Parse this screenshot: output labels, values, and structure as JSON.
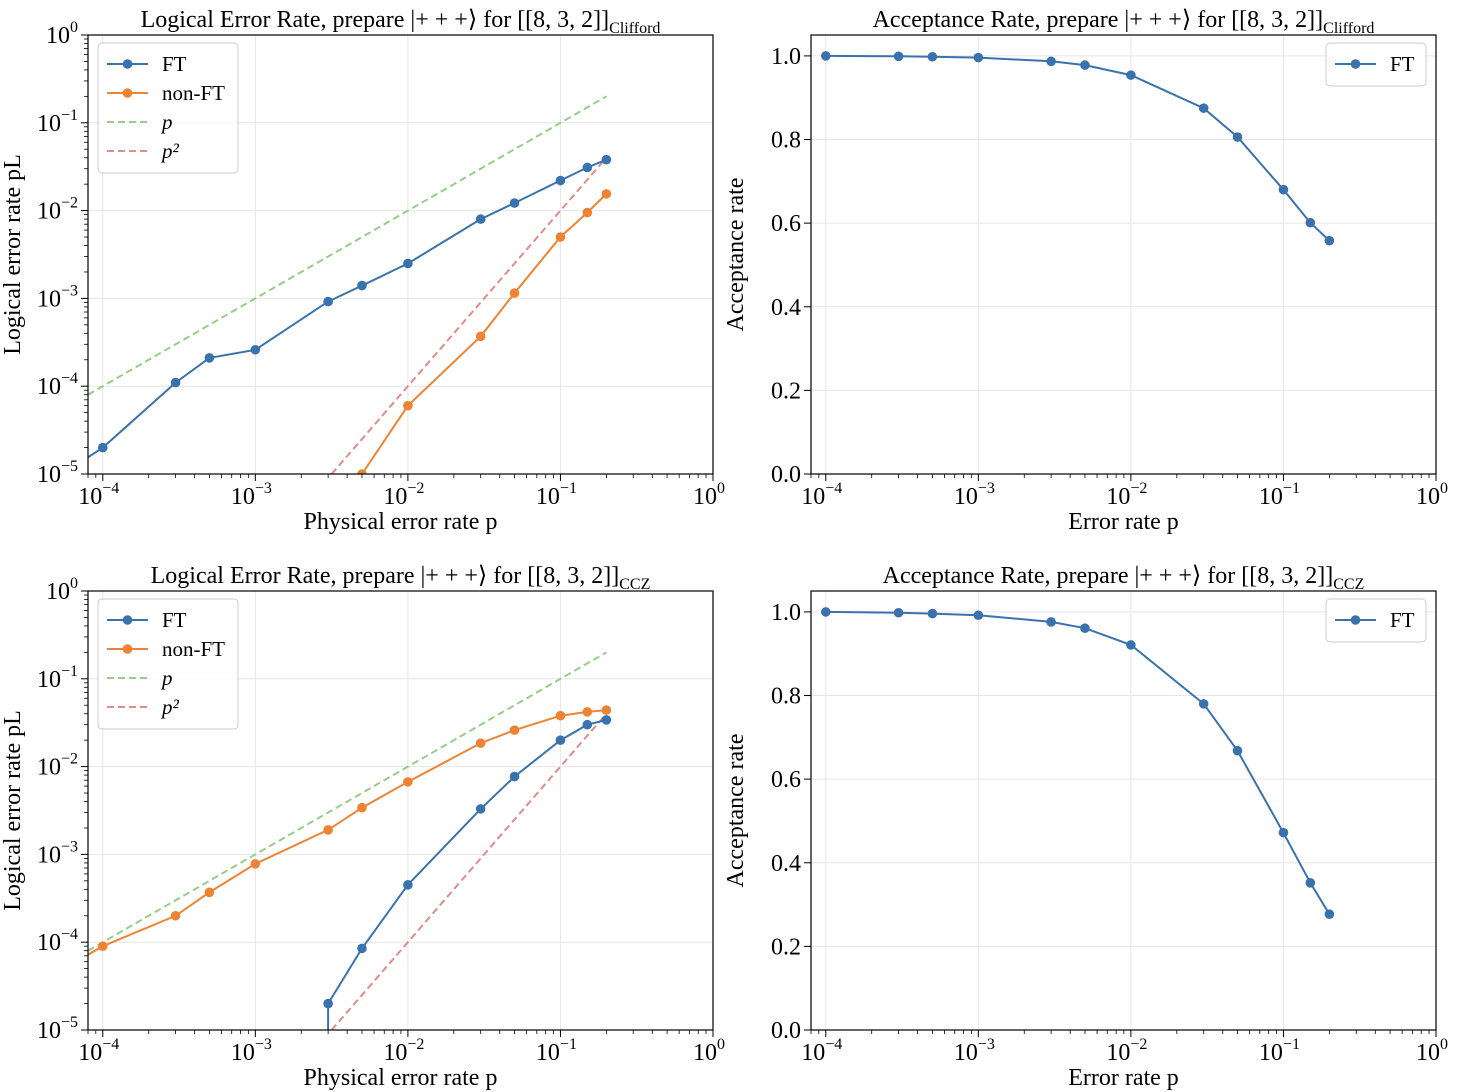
{
  "colors": {
    "ft": "#3a72ae",
    "nonft": "#ee8433",
    "p_ref": "#95cf87",
    "p2_ref": "#e08c8a",
    "grid": "#e6e6e6"
  },
  "chart_data": [
    {
      "type": "line",
      "title_main": "Logical Error Rate, prepare",
      "title_state": "|+ + +⟩",
      "title_for": "for [[8, 3, 2]]",
      "title_sub": "Clifford",
      "xlabel": "Physical error rate p",
      "ylabel": "Logical error rate pL",
      "xscale": "log",
      "yscale": "log",
      "xlim": [
        8e-05,
        1
      ],
      "ylim": [
        1e-05,
        1
      ],
      "xticks": [
        {
          "v": 0.0001,
          "e": "−4"
        },
        {
          "v": 0.001,
          "e": "−3"
        },
        {
          "v": 0.01,
          "e": "−2"
        },
        {
          "v": 0.1,
          "e": "−1"
        },
        {
          "v": 1,
          "e": "0"
        }
      ],
      "yticks": [
        {
          "v": 1e-05,
          "e": "−5"
        },
        {
          "v": 0.0001,
          "e": "−4"
        },
        {
          "v": 0.001,
          "e": "−3"
        },
        {
          "v": 0.01,
          "e": "−2"
        },
        {
          "v": 0.1,
          "e": "−1"
        },
        {
          "v": 1,
          "e": "0"
        }
      ],
      "legend_position": "top-left",
      "legend": [
        {
          "label": "FT",
          "key": "ft",
          "style": "solid-marker"
        },
        {
          "label": "non-FT",
          "key": "nonft",
          "style": "solid-marker"
        },
        {
          "label": "p",
          "key": "p_ref",
          "style": "dashed"
        },
        {
          "label": "p²",
          "key": "p2_ref",
          "style": "dashed"
        }
      ],
      "series": [
        {
          "name": "FT",
          "key": "ft",
          "x": [
            0.0001,
            0.0003,
            0.0005,
            0.001,
            0.003,
            0.005,
            0.01,
            0.03,
            0.05,
            0.1,
            0.15,
            0.2
          ],
          "y": [
            2e-05,
            0.00011,
            0.00021,
            0.00026,
            0.00092,
            0.0014,
            0.0025,
            0.008,
            0.0122,
            0.022,
            0.031,
            0.038
          ],
          "lead_in": [
            8e-05,
            1.55e-05
          ]
        },
        {
          "name": "non-FT",
          "key": "nonft",
          "x": [
            0.005,
            0.01,
            0.03,
            0.05,
            0.1,
            0.15,
            0.2
          ],
          "y": [
            1e-05,
            6e-05,
            0.00037,
            0.00115,
            0.005,
            0.0095,
            0.0155
          ]
        },
        {
          "name": "p",
          "key": "p_ref",
          "type": "dashed",
          "x": [
            8e-05,
            0.2
          ],
          "y": [
            8e-05,
            0.2
          ]
        },
        {
          "name": "p²",
          "key": "p2_ref",
          "type": "dashed",
          "x": [
            0.00316,
            0.2
          ],
          "y": [
            1e-05,
            0.04
          ]
        }
      ]
    },
    {
      "type": "line",
      "title_main": "Acceptance Rate, prepare",
      "title_state": "|+ + +⟩",
      "title_for": "for [[8, 3, 2]]",
      "title_sub": "Clifford",
      "xlabel": "Error rate p",
      "ylabel": "Acceptance rate",
      "xscale": "log",
      "yscale": "linear",
      "xlim": [
        8e-05,
        1
      ],
      "ylim": [
        0,
        1.05
      ],
      "xticks": [
        {
          "v": 0.0001,
          "e": "−4"
        },
        {
          "v": 0.001,
          "e": "−3"
        },
        {
          "v": 0.01,
          "e": "−2"
        },
        {
          "v": 0.1,
          "e": "−1"
        },
        {
          "v": 1,
          "e": "0"
        }
      ],
      "yticks": [
        {
          "v": 0,
          "t": "0.0"
        },
        {
          "v": 0.2,
          "t": "0.2"
        },
        {
          "v": 0.4,
          "t": "0.4"
        },
        {
          "v": 0.6,
          "t": "0.6"
        },
        {
          "v": 0.8,
          "t": "0.8"
        },
        {
          "v": 1.0,
          "t": "1.0"
        }
      ],
      "legend_position": "top-right",
      "legend": [
        {
          "label": "FT",
          "key": "ft",
          "style": "solid-marker"
        }
      ],
      "series": [
        {
          "name": "FT",
          "key": "ft",
          "x": [
            0.0001,
            0.0003,
            0.0005,
            0.001,
            0.003,
            0.005,
            0.01,
            0.03,
            0.05,
            0.1,
            0.15,
            0.2
          ],
          "y": [
            1.0,
            0.999,
            0.998,
            0.996,
            0.987,
            0.978,
            0.954,
            0.875,
            0.806,
            0.68,
            0.601,
            0.558
          ]
        }
      ]
    },
    {
      "type": "line",
      "title_main": "Logical Error Rate, prepare",
      "title_state": "|+ + +⟩",
      "title_for": "for [[8, 3, 2]]",
      "title_sub": "CCZ",
      "xlabel": "Physical error rate p",
      "ylabel": "Logical error rate pL",
      "xscale": "log",
      "yscale": "log",
      "xlim": [
        8e-05,
        1
      ],
      "ylim": [
        1e-05,
        1
      ],
      "xticks": [
        {
          "v": 0.0001,
          "e": "−4"
        },
        {
          "v": 0.001,
          "e": "−3"
        },
        {
          "v": 0.01,
          "e": "−2"
        },
        {
          "v": 0.1,
          "e": "−1"
        },
        {
          "v": 1,
          "e": "0"
        }
      ],
      "yticks": [
        {
          "v": 1e-05,
          "e": "−5"
        },
        {
          "v": 0.0001,
          "e": "−4"
        },
        {
          "v": 0.001,
          "e": "−3"
        },
        {
          "v": 0.01,
          "e": "−2"
        },
        {
          "v": 0.1,
          "e": "−1"
        },
        {
          "v": 1,
          "e": "0"
        }
      ],
      "legend_position": "top-left",
      "legend": [
        {
          "label": "FT",
          "key": "ft",
          "style": "solid-marker"
        },
        {
          "label": "non-FT",
          "key": "nonft",
          "style": "solid-marker"
        },
        {
          "label": "p",
          "key": "p_ref",
          "style": "dashed"
        },
        {
          "label": "p²",
          "key": "p2_ref",
          "style": "dashed"
        }
      ],
      "series": [
        {
          "name": "FT",
          "key": "ft",
          "x": [
            0.003,
            0.005,
            0.01,
            0.03,
            0.05,
            0.1,
            0.15,
            0.2
          ],
          "y": [
            2e-05,
            8.5e-05,
            0.00045,
            0.0033,
            0.0077,
            0.02,
            0.03,
            0.034
          ],
          "lead_in": [
            0.003,
            1e-05
          ]
        },
        {
          "name": "non-FT",
          "key": "nonft",
          "x": [
            0.0001,
            0.0003,
            0.0005,
            0.001,
            0.003,
            0.005,
            0.01,
            0.03,
            0.05,
            0.1,
            0.15,
            0.2
          ],
          "y": [
            9e-05,
            0.0002,
            0.00037,
            0.00078,
            0.0019,
            0.0034,
            0.0067,
            0.0185,
            0.026,
            0.038,
            0.042,
            0.044
          ],
          "lead_in": [
            8e-05,
            7.2e-05
          ]
        },
        {
          "name": "p",
          "key": "p_ref",
          "type": "dashed",
          "x": [
            8e-05,
            0.2
          ],
          "y": [
            8e-05,
            0.2
          ]
        },
        {
          "name": "p²",
          "key": "p2_ref",
          "type": "dashed",
          "x": [
            0.00316,
            0.2
          ],
          "y": [
            1e-05,
            0.04
          ]
        }
      ]
    },
    {
      "type": "line",
      "title_main": "Acceptance Rate, prepare",
      "title_state": "|+ + +⟩",
      "title_for": "for [[8, 3, 2]]",
      "title_sub": "CCZ",
      "xlabel": "Error rate p",
      "ylabel": "Acceptance rate",
      "xscale": "log",
      "yscale": "linear",
      "xlim": [
        8e-05,
        1
      ],
      "ylim": [
        0,
        1.05
      ],
      "xticks": [
        {
          "v": 0.0001,
          "e": "−4"
        },
        {
          "v": 0.001,
          "e": "−3"
        },
        {
          "v": 0.01,
          "e": "−2"
        },
        {
          "v": 0.1,
          "e": "−1"
        },
        {
          "v": 1,
          "e": "0"
        }
      ],
      "yticks": [
        {
          "v": 0,
          "t": "0.0"
        },
        {
          "v": 0.2,
          "t": "0.2"
        },
        {
          "v": 0.4,
          "t": "0.4"
        },
        {
          "v": 0.6,
          "t": "0.6"
        },
        {
          "v": 0.8,
          "t": "0.8"
        },
        {
          "v": 1.0,
          "t": "1.0"
        }
      ],
      "legend_position": "top-right",
      "legend": [
        {
          "label": "FT",
          "key": "ft",
          "style": "solid-marker"
        }
      ],
      "series": [
        {
          "name": "FT",
          "key": "ft",
          "x": [
            0.0001,
            0.0003,
            0.0005,
            0.001,
            0.003,
            0.005,
            0.01,
            0.03,
            0.05,
            0.1,
            0.15,
            0.2
          ],
          "y": [
            1.0,
            0.998,
            0.996,
            0.992,
            0.976,
            0.961,
            0.921,
            0.78,
            0.668,
            0.472,
            0.352,
            0.277
          ]
        }
      ]
    }
  ]
}
